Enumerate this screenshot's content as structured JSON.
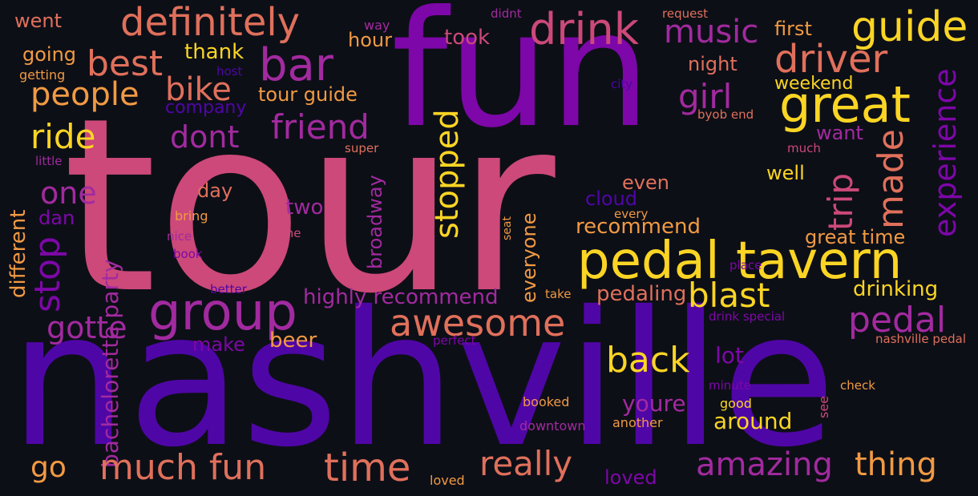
{
  "palette": {
    "background": "#0d0f17",
    "deep_indigo": "#4f06a6",
    "purple": "#7d07a8",
    "magenta": "#a22a9f",
    "pink": "#cc4979",
    "coral": "#e0705b",
    "orange": "#f19a43",
    "yellow": "#fbd524"
  },
  "words": [
    "tour",
    "fun",
    "nashville",
    "pedal tavern",
    "group",
    "bar",
    "drink",
    "great",
    "driver",
    "definitely",
    "guide",
    "music",
    "best",
    "people",
    "bike",
    "ride",
    "friend",
    "dont",
    "girl",
    "stopped",
    "experience",
    "made",
    "trip",
    "stop",
    "one",
    "awesome",
    "pedal",
    "blast",
    "back",
    "gotte",
    "amazing",
    "thing",
    "really",
    "time",
    "much fun",
    "go",
    "bachelorette party",
    "different",
    "broadway",
    "everyone",
    "highly recommend",
    "recommend",
    "pedaling",
    "drinking",
    "great time",
    "youre",
    "around",
    "lot",
    "beer",
    "make",
    "two",
    "day",
    "dan",
    "cloud",
    "even",
    "well",
    "want",
    "weekend",
    "night",
    "first",
    "company",
    "tour guide",
    "hour",
    "took",
    "thank",
    "going",
    "went",
    "getting",
    "host",
    "little",
    "super",
    "way",
    "didnt",
    "request",
    "city",
    "byob end",
    "much",
    "bring",
    "nice",
    "book",
    "done",
    "must",
    "every",
    "take",
    "seat",
    "better",
    "place",
    "drink special",
    "perfect",
    "nashville pedal",
    "minute",
    "see",
    "check",
    "good",
    "booked",
    "downtown",
    "another",
    "loved"
  ]
}
